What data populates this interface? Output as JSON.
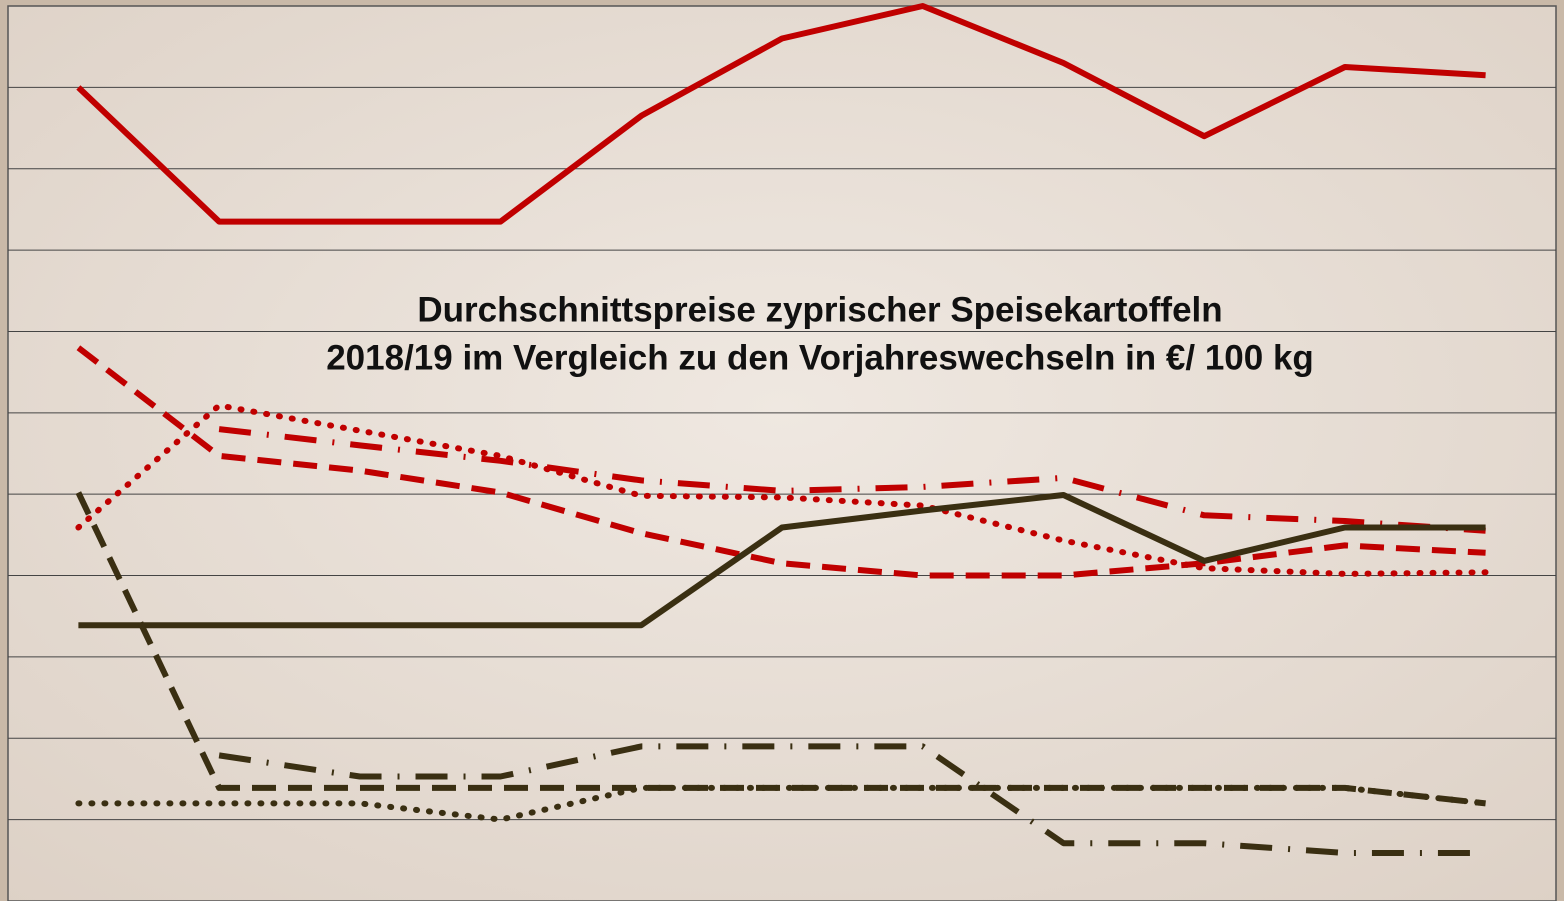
{
  "chart_data": {
    "type": "line",
    "title": [
      "Durchschnittspreise zyprischer Speisekartoffeln",
      "2018/19 im Vergleich zu den Vorjahreswechseln in €/ 100 kg"
    ],
    "categories": [
      null,
      null,
      null,
      null,
      null,
      null,
      null,
      null,
      null,
      null,
      null
    ],
    "ylim": [
      0,
      11
    ],
    "yticks": [
      1,
      2,
      3,
      4,
      5,
      6,
      7,
      8,
      9,
      10
    ],
    "grid": true,
    "series": [
      {
        "color": "#c00000",
        "dash": "solid",
        "values": [
          10,
          8.35,
          8.35,
          8.35,
          9.65,
          10.6,
          11,
          10.3,
          9.4,
          10.25,
          10.15
        ]
      },
      {
        "color": "#c00000",
        "dash": "dashed",
        "values": [
          6.8,
          5.47,
          5.29,
          5.02,
          4.52,
          4.15,
          4,
          4,
          4.15,
          4.37,
          4.28
        ]
      },
      {
        "color": "#c00000",
        "dash": "dotted",
        "values": [
          4.59,
          6.09,
          5.78,
          5.47,
          4.98,
          4.96,
          4.86,
          4.43,
          4.09,
          4.02,
          4.04
        ]
      },
      {
        "color": "#c00000",
        "dash": "dashdot",
        "values": [
          null,
          5.8,
          5.6,
          5.41,
          5.17,
          5.04,
          5.09,
          5.2,
          4.74,
          4.67,
          4.55
        ]
      },
      {
        "color": "#3a2f12",
        "dash": "solid",
        "values": [
          3.39,
          3.39,
          3.39,
          3.39,
          3.39,
          4.59,
          4.8,
          4.99,
          4.18,
          4.59,
          4.59
        ]
      },
      {
        "color": "#3a2f12",
        "dash": "dashed",
        "values": [
          5.02,
          1.39,
          1.39,
          1.39,
          1.39,
          1.39,
          1.39,
          1.39,
          1.39,
          1.39,
          1.2
        ]
      },
      {
        "color": "#3a2f12",
        "dash": "dotted",
        "values": [
          1.2,
          1.2,
          1.2,
          1.0,
          1.39,
          1.39,
          1.39,
          1.39,
          1.39,
          1.39,
          1.2
        ]
      },
      {
        "color": "#3a2f12",
        "dash": "dashdot",
        "values": [
          null,
          1.79,
          1.53,
          1.53,
          1.9,
          1.9,
          1.9,
          0.71,
          0.71,
          0.59,
          0.59
        ]
      }
    ]
  }
}
